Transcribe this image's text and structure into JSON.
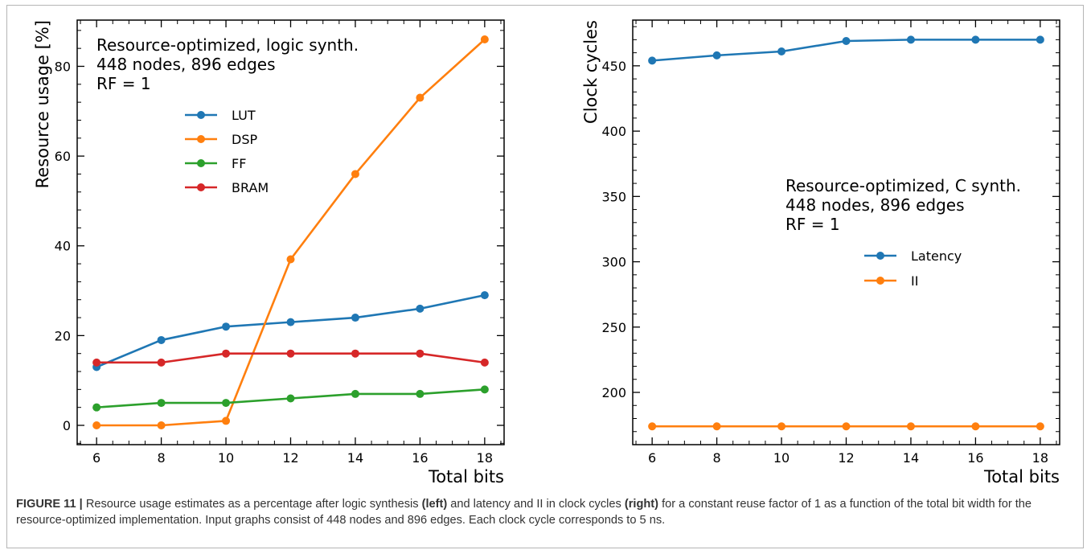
{
  "caption": {
    "label": "FIGURE 11 |",
    "text_1": " Resource usage estimates as a percentage after logic synthesis ",
    "bold_left": "(left)",
    "text_2": " and latency and II in clock cycles ",
    "bold_right": "(right)",
    "text_3": " for a constant reuse factor of 1 as a function of the total bit width for the resource-optimized implementation. Input graphs consist of 448 nodes and 896 edges. Each clock cycle corresponds to 5 ns."
  },
  "chart_data": [
    {
      "type": "line",
      "annotation": [
        "Resource-optimized, logic synth.",
        "448 nodes, 896 edges",
        "RF = 1"
      ],
      "xlabel": "Total bits",
      "ylabel": "Resource usage [%]",
      "x": [
        6,
        8,
        10,
        12,
        14,
        16,
        18
      ],
      "xticks": [
        6,
        8,
        10,
        12,
        14,
        16,
        18
      ],
      "yticks": [
        0,
        20,
        40,
        60,
        80
      ],
      "xlim": [
        5.4,
        18.6
      ],
      "ylim": [
        -4.3,
        90.3
      ],
      "legend_location": "upper-center",
      "grid": false,
      "series": [
        {
          "name": "LUT",
          "color": "#1f77b4",
          "values": [
            13,
            19,
            22,
            23,
            24,
            26,
            29
          ]
        },
        {
          "name": "DSP",
          "color": "#ff7f0e",
          "values": [
            0,
            0,
            1,
            37,
            56,
            73,
            86
          ]
        },
        {
          "name": "FF",
          "color": "#2ca02c",
          "values": [
            4,
            5,
            5,
            6,
            7,
            7,
            8
          ]
        },
        {
          "name": "BRAM",
          "color": "#d62728",
          "values": [
            14,
            14,
            16,
            16,
            16,
            16,
            14
          ]
        }
      ]
    },
    {
      "type": "line",
      "annotation": [
        "Resource-optimized, C synth.",
        "448 nodes, 896 edges",
        "RF = 1"
      ],
      "xlabel": "Total bits",
      "ylabel": "Clock cycles",
      "x": [
        6,
        8,
        10,
        12,
        14,
        16,
        18
      ],
      "xticks": [
        6,
        8,
        10,
        12,
        14,
        16,
        18
      ],
      "yticks": [
        200,
        250,
        300,
        350,
        400,
        450
      ],
      "xlim": [
        5.4,
        18.6
      ],
      "ylim": [
        160,
        485
      ],
      "legend_location": "center-right",
      "grid": false,
      "series": [
        {
          "name": "Latency",
          "color": "#1f77b4",
          "values": [
            454,
            458,
            461,
            469,
            470,
            470,
            470
          ]
        },
        {
          "name": "II",
          "color": "#ff7f0e",
          "values": [
            174,
            174,
            174,
            174,
            174,
            174,
            174
          ]
        }
      ]
    }
  ]
}
